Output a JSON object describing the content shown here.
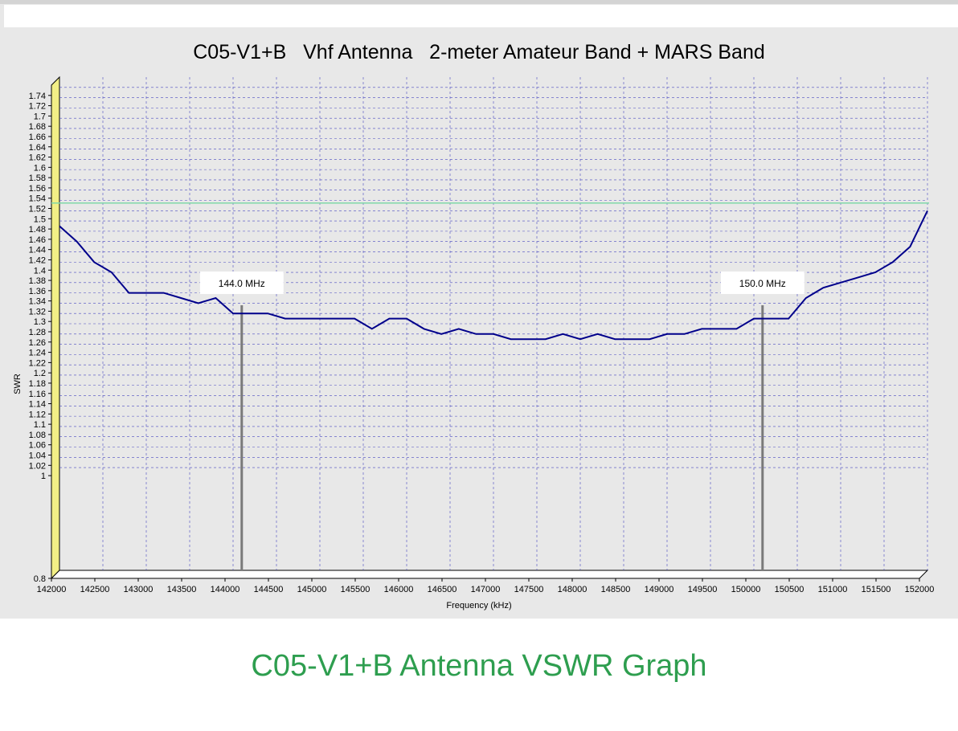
{
  "chart_data": {
    "type": "line",
    "title": "C05-V1+B   Vhf Antenna   2-meter Amateur Band + MARS Band",
    "xlabel": "Frequency (kHz)",
    "ylabel": "SWR",
    "xlim": [
      142000,
      152000
    ],
    "ylim": [
      0.8,
      1.76
    ],
    "x_ticks": [
      142000,
      142500,
      143000,
      143500,
      144000,
      144500,
      145000,
      145500,
      146000,
      146500,
      147000,
      147500,
      148000,
      148500,
      149000,
      149500,
      150000,
      150500,
      151000,
      151500,
      152000
    ],
    "y_ticks": [
      0.8,
      1,
      1.02,
      1.04,
      1.06,
      1.08,
      1.1,
      1.12,
      1.14,
      1.16,
      1.18,
      1.2,
      1.22,
      1.24,
      1.26,
      1.28,
      1.3,
      1.32,
      1.34,
      1.36,
      1.38,
      1.4,
      1.42,
      1.44,
      1.46,
      1.48,
      1.5,
      1.52,
      1.54,
      1.56,
      1.58,
      1.6,
      1.62,
      1.64,
      1.66,
      1.68,
      1.7,
      1.72,
      1.74
    ],
    "grid": true,
    "reference_line": 1.515,
    "markers": [
      {
        "x": 144100,
        "label": "144.0 MHz"
      },
      {
        "x": 150100,
        "label": "150.0 MHz"
      }
    ],
    "series": [
      {
        "color": "#00008b",
        "x": [
          142000,
          142200,
          142400,
          142600,
          142800,
          143000,
          143200,
          143400,
          143600,
          143800,
          144000,
          144200,
          144400,
          144600,
          144800,
          145000,
          145200,
          145400,
          145600,
          145800,
          146000,
          146200,
          146400,
          146600,
          146800,
          147000,
          147200,
          147400,
          147600,
          147800,
          148000,
          148200,
          148400,
          148600,
          148800,
          149000,
          149200,
          149400,
          149600,
          149800,
          150000,
          150200,
          150400,
          150600,
          150800,
          151000,
          151200,
          151400,
          151600,
          151800,
          152000
        ],
        "values": [
          1.47,
          1.44,
          1.4,
          1.38,
          1.34,
          1.34,
          1.34,
          1.33,
          1.32,
          1.33,
          1.3,
          1.3,
          1.3,
          1.29,
          1.29,
          1.29,
          1.29,
          1.29,
          1.27,
          1.29,
          1.29,
          1.27,
          1.26,
          1.27,
          1.26,
          1.26,
          1.25,
          1.25,
          1.25,
          1.26,
          1.25,
          1.26,
          1.25,
          1.25,
          1.25,
          1.26,
          1.26,
          1.27,
          1.27,
          1.27,
          1.29,
          1.29,
          1.29,
          1.33,
          1.35,
          1.36,
          1.37,
          1.38,
          1.4,
          1.43,
          1.5
        ]
      }
    ]
  },
  "caption": "C05-V1+B Antenna VSWR Graph",
  "colors": {
    "panel_bg": "#e8e8e8",
    "top_bar": "#d4d4d4",
    "grid": "#4a4ac0",
    "axis_band": "#f2ef86",
    "reference_line": "#7fd8a8",
    "marker": "#7a7a7a",
    "caption": "#2e9e4f"
  }
}
